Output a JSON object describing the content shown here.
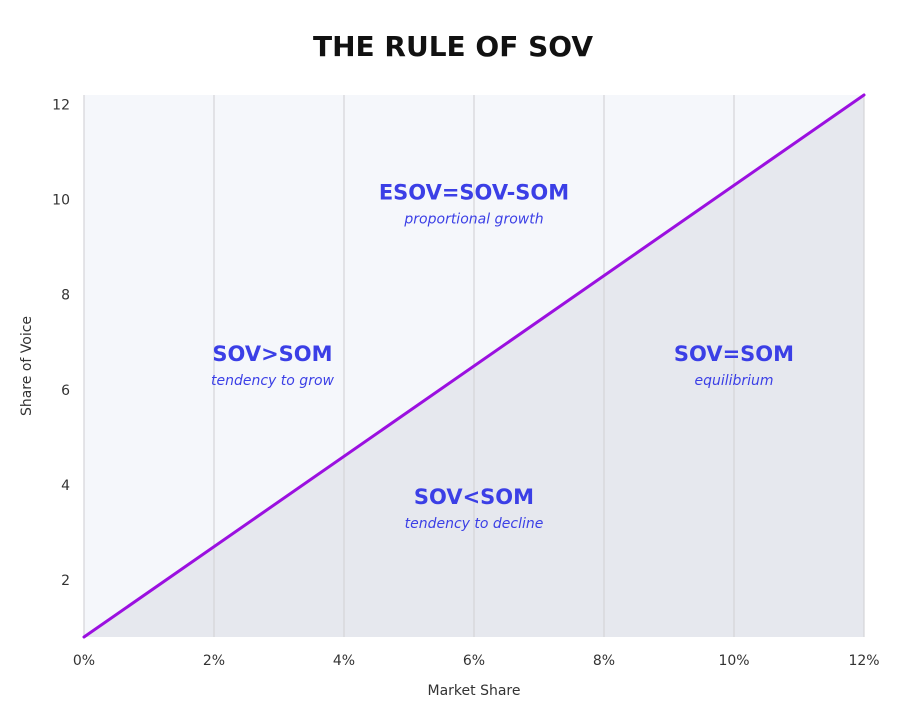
{
  "chart_data": {
    "type": "line",
    "title": "THE RULE OF SOV",
    "xlabel": "Market Share",
    "ylabel": "Share of Voice",
    "xlim": [
      0,
      12
    ],
    "ylim": [
      0.8,
      12.2
    ],
    "x_ticks": [
      0,
      2,
      4,
      6,
      8,
      10,
      12
    ],
    "x_tick_labels": [
      "0%",
      "2%",
      "4%",
      "6%",
      "8%",
      "10%",
      "12%"
    ],
    "y_ticks": [
      2,
      4,
      6,
      8,
      10,
      12
    ],
    "y_tick_labels": [
      "2",
      "4",
      "6",
      "8",
      "10",
      "12"
    ],
    "grid": "vertical",
    "series": [
      {
        "x": [
          0,
          12
        ],
        "y": [
          0.8,
          12.2
        ]
      }
    ],
    "colors": {
      "line": "#9b10e0",
      "above_fill": "#f5f7fb",
      "below_fill": "#e6e8ee",
      "annotation": "#3b3fe6",
      "grid": "#d4d4d8"
    },
    "annotations": [
      {
        "title": "ESOV=SOV-SOM",
        "subtitle": "proportional growth",
        "x": 6,
        "y": 10
      },
      {
        "title": "SOV>SOM",
        "subtitle": "tendency to grow",
        "x": 2.9,
        "y": 6.6
      },
      {
        "title": "SOV=SOM",
        "subtitle": "equilibrium",
        "x": 10,
        "y": 6.6
      },
      {
        "title": "SOV<SOM",
        "subtitle": "tendency to decline",
        "x": 6,
        "y": 3.6
      }
    ]
  }
}
